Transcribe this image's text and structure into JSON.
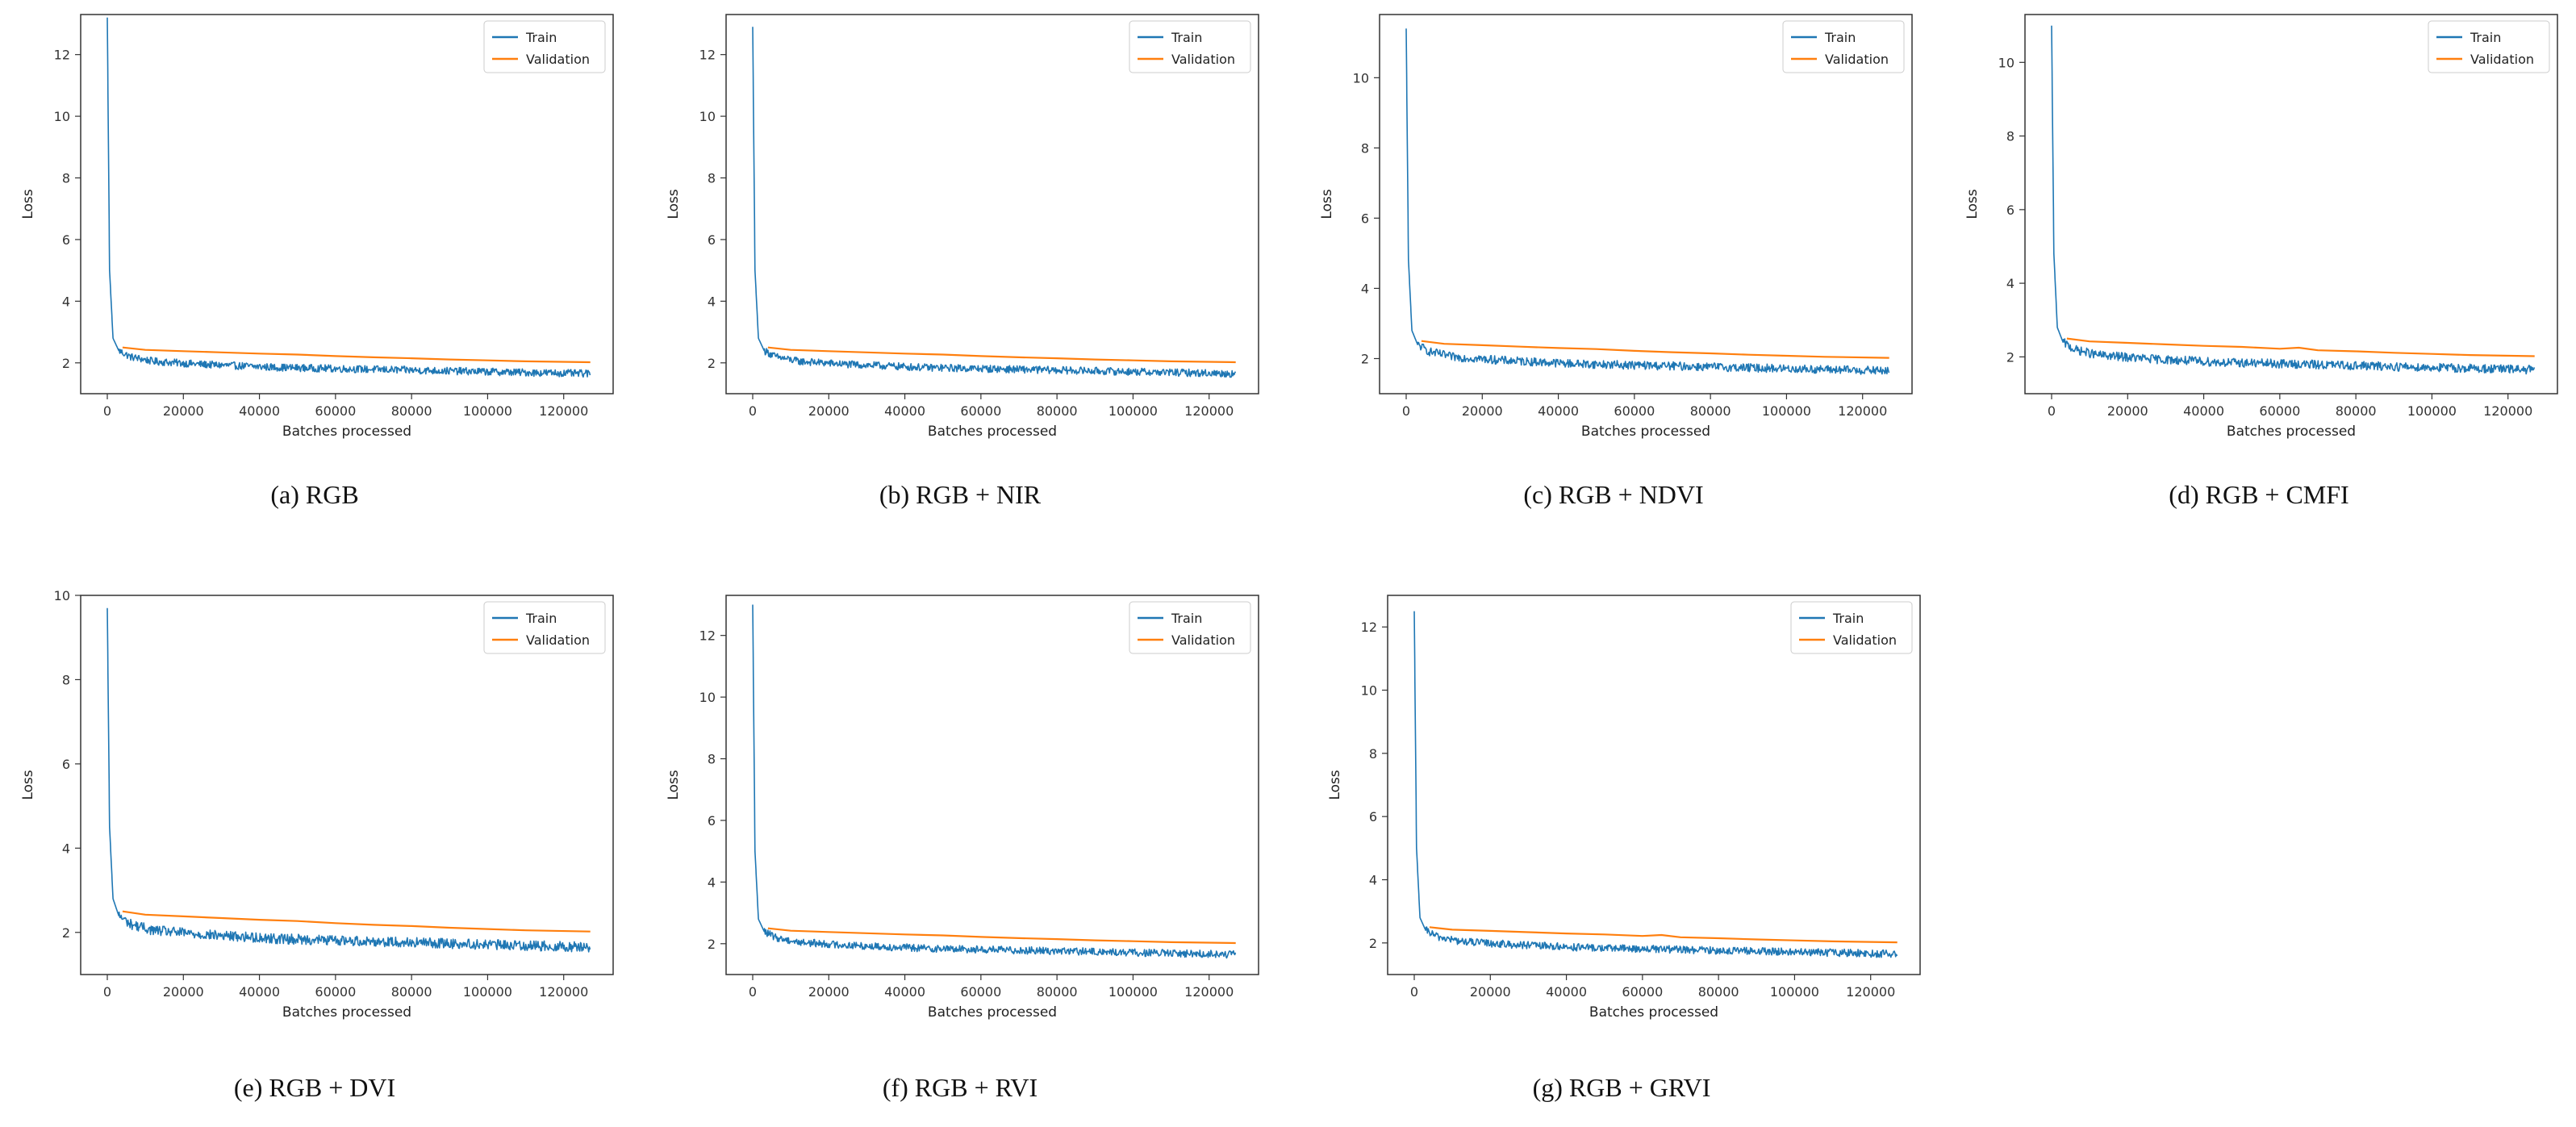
{
  "colors": {
    "train": "#1f77b4",
    "validation": "#ff7f0e",
    "axis": "#333333",
    "legend_border": "#cccccc"
  },
  "chart_data": [
    {
      "id": "a",
      "type": "line",
      "caption": "(a) RGB",
      "xlabel": "Batches processed",
      "ylabel": "Loss",
      "xlim": [
        -7000,
        133000
      ],
      "ylim": [
        1.0,
        13.3
      ],
      "xticks": [
        0,
        20000,
        40000,
        60000,
        80000,
        100000,
        120000
      ],
      "yticks": [
        2,
        4,
        6,
        8,
        10,
        12
      ],
      "legend": [
        "Train",
        "Validation"
      ],
      "legend_loc": "top-right",
      "series": [
        {
          "name": "Train",
          "x": [
            0,
            600,
            1500,
            3000,
            6000,
            12000,
            25000,
            45000,
            65000,
            85000,
            105000,
            127000
          ],
          "y": [
            13.2,
            5.0,
            2.8,
            2.4,
            2.2,
            2.05,
            1.95,
            1.85,
            1.8,
            1.75,
            1.7,
            1.65
          ],
          "noise": 0.12
        },
        {
          "name": "Validation",
          "x": [
            4000,
            10000,
            20000,
            30000,
            40000,
            50000,
            60000,
            70000,
            80000,
            90000,
            100000,
            110000,
            127000
          ],
          "y": [
            2.5,
            2.42,
            2.38,
            2.34,
            2.3,
            2.27,
            2.22,
            2.18,
            2.15,
            2.11,
            2.08,
            2.05,
            2.02
          ]
        }
      ]
    },
    {
      "id": "b",
      "type": "line",
      "caption": "(b) RGB + NIR",
      "xlabel": "Batches processed",
      "ylabel": "Loss",
      "xlim": [
        -7000,
        133000
      ],
      "ylim": [
        1.0,
        13.3
      ],
      "xticks": [
        0,
        20000,
        40000,
        60000,
        80000,
        100000,
        120000
      ],
      "yticks": [
        2,
        4,
        6,
        8,
        10,
        12
      ],
      "legend": [
        "Train",
        "Validation"
      ],
      "legend_loc": "top-right",
      "series": [
        {
          "name": "Train",
          "x": [
            0,
            600,
            1500,
            3000,
            6000,
            12000,
            25000,
            45000,
            65000,
            85000,
            105000,
            127000
          ],
          "y": [
            12.9,
            5.0,
            2.8,
            2.4,
            2.2,
            2.05,
            1.95,
            1.85,
            1.8,
            1.75,
            1.7,
            1.65
          ],
          "noise": 0.12
        },
        {
          "name": "Validation",
          "x": [
            4000,
            10000,
            20000,
            30000,
            40000,
            50000,
            60000,
            70000,
            80000,
            90000,
            100000,
            110000,
            127000
          ],
          "y": [
            2.5,
            2.42,
            2.38,
            2.34,
            2.3,
            2.27,
            2.22,
            2.18,
            2.15,
            2.11,
            2.08,
            2.05,
            2.02
          ]
        }
      ]
    },
    {
      "id": "c",
      "type": "line",
      "caption": "(c) RGB + NDVI",
      "xlabel": "Batches processed",
      "ylabel": "Loss",
      "xlim": [
        -7000,
        133000
      ],
      "ylim": [
        1.0,
        11.8
      ],
      "xticks": [
        0,
        20000,
        40000,
        60000,
        80000,
        100000,
        120000
      ],
      "yticks": [
        2,
        4,
        6,
        8,
        10
      ],
      "legend": [
        "Train",
        "Validation"
      ],
      "legend_loc": "top-right",
      "series": [
        {
          "name": "Train",
          "x": [
            0,
            600,
            1500,
            3000,
            6000,
            12000,
            25000,
            45000,
            65000,
            85000,
            105000,
            127000
          ],
          "y": [
            11.4,
            4.8,
            2.8,
            2.4,
            2.2,
            2.05,
            1.95,
            1.85,
            1.8,
            1.75,
            1.7,
            1.65
          ],
          "noise": 0.12
        },
        {
          "name": "Validation",
          "x": [
            4000,
            10000,
            20000,
            30000,
            40000,
            50000,
            60000,
            70000,
            80000,
            90000,
            100000,
            110000,
            127000
          ],
          "y": [
            2.5,
            2.42,
            2.38,
            2.34,
            2.3,
            2.27,
            2.22,
            2.18,
            2.15,
            2.11,
            2.08,
            2.05,
            2.02
          ]
        }
      ]
    },
    {
      "id": "d",
      "type": "line",
      "caption": "(d) RGB + CMFI",
      "xlabel": "Batches processed",
      "ylabel": "Loss",
      "xlim": [
        -7000,
        133000
      ],
      "ylim": [
        1.0,
        11.3
      ],
      "xticks": [
        0,
        20000,
        40000,
        60000,
        80000,
        100000,
        120000
      ],
      "yticks": [
        2,
        4,
        6,
        8,
        10
      ],
      "legend": [
        "Train",
        "Validation"
      ],
      "legend_loc": "top-right",
      "series": [
        {
          "name": "Train",
          "x": [
            0,
            600,
            1500,
            3000,
            6000,
            12000,
            25000,
            45000,
            65000,
            85000,
            105000,
            127000
          ],
          "y": [
            11.0,
            4.8,
            2.8,
            2.4,
            2.2,
            2.05,
            1.95,
            1.85,
            1.8,
            1.75,
            1.7,
            1.65
          ],
          "noise": 0.12
        },
        {
          "name": "Validation",
          "x": [
            4000,
            10000,
            20000,
            30000,
            40000,
            50000,
            60000,
            65000,
            70000,
            80000,
            90000,
            100000,
            110000,
            127000
          ],
          "y": [
            2.5,
            2.42,
            2.38,
            2.34,
            2.3,
            2.27,
            2.22,
            2.25,
            2.18,
            2.15,
            2.11,
            2.08,
            2.05,
            2.02
          ]
        }
      ]
    },
    {
      "id": "e",
      "type": "line",
      "caption": "(e) RGB + DVI",
      "xlabel": "Batches processed",
      "ylabel": "Loss",
      "xlim": [
        -7000,
        133000
      ],
      "ylim": [
        1.0,
        10.0
      ],
      "xticks": [
        0,
        20000,
        40000,
        60000,
        80000,
        100000,
        120000
      ],
      "yticks": [
        2,
        4,
        6,
        8,
        10
      ],
      "legend": [
        "Train",
        "Validation"
      ],
      "legend_loc": "top-right",
      "series": [
        {
          "name": "Train",
          "x": [
            0,
            600,
            1500,
            3000,
            6000,
            12000,
            25000,
            45000,
            65000,
            85000,
            105000,
            127000
          ],
          "y": [
            9.7,
            4.5,
            2.8,
            2.4,
            2.2,
            2.05,
            1.95,
            1.85,
            1.8,
            1.75,
            1.7,
            1.65
          ],
          "noise": 0.12
        },
        {
          "name": "Validation",
          "x": [
            4000,
            10000,
            20000,
            30000,
            40000,
            50000,
            60000,
            70000,
            80000,
            90000,
            100000,
            110000,
            127000
          ],
          "y": [
            2.5,
            2.42,
            2.38,
            2.34,
            2.3,
            2.27,
            2.22,
            2.18,
            2.15,
            2.11,
            2.08,
            2.05,
            2.02
          ]
        }
      ]
    },
    {
      "id": "f",
      "type": "line",
      "caption": "(f) RGB + RVI",
      "xlabel": "Batches processed",
      "ylabel": "Loss",
      "xlim": [
        -7000,
        133000
      ],
      "ylim": [
        1.0,
        13.3
      ],
      "xticks": [
        0,
        20000,
        40000,
        60000,
        80000,
        100000,
        120000
      ],
      "yticks": [
        2,
        4,
        6,
        8,
        10,
        12
      ],
      "legend": [
        "Train",
        "Validation"
      ],
      "legend_loc": "top-right",
      "series": [
        {
          "name": "Train",
          "x": [
            0,
            600,
            1500,
            3000,
            6000,
            12000,
            25000,
            45000,
            65000,
            85000,
            105000,
            127000
          ],
          "y": [
            13.0,
            5.0,
            2.8,
            2.4,
            2.2,
            2.05,
            1.95,
            1.85,
            1.8,
            1.75,
            1.7,
            1.65
          ],
          "noise": 0.12
        },
        {
          "name": "Validation",
          "x": [
            4000,
            10000,
            20000,
            30000,
            40000,
            50000,
            60000,
            70000,
            80000,
            90000,
            100000,
            110000,
            127000
          ],
          "y": [
            2.5,
            2.42,
            2.38,
            2.34,
            2.3,
            2.27,
            2.22,
            2.18,
            2.15,
            2.11,
            2.08,
            2.05,
            2.02
          ]
        }
      ]
    },
    {
      "id": "g",
      "type": "line",
      "caption": "(g) RGB + GRVI",
      "xlabel": "Batches processed",
      "ylabel": "Loss",
      "xlim": [
        -7000,
        133000
      ],
      "ylim": [
        1.0,
        13.0
      ],
      "xticks": [
        0,
        20000,
        40000,
        60000,
        80000,
        100000,
        120000
      ],
      "yticks": [
        2,
        4,
        6,
        8,
        10,
        12
      ],
      "legend": [
        "Train",
        "Validation"
      ],
      "legend_loc": "top-right",
      "series": [
        {
          "name": "Train",
          "x": [
            0,
            600,
            1500,
            3000,
            6000,
            12000,
            25000,
            45000,
            65000,
            85000,
            105000,
            127000
          ],
          "y": [
            12.5,
            5.0,
            2.8,
            2.4,
            2.2,
            2.05,
            1.95,
            1.85,
            1.8,
            1.75,
            1.7,
            1.65
          ],
          "noise": 0.12
        },
        {
          "name": "Validation",
          "x": [
            4000,
            10000,
            20000,
            30000,
            40000,
            50000,
            60000,
            65000,
            70000,
            80000,
            90000,
            100000,
            110000,
            127000
          ],
          "y": [
            2.5,
            2.42,
            2.38,
            2.34,
            2.3,
            2.27,
            2.22,
            2.25,
            2.18,
            2.15,
            2.11,
            2.08,
            2.05,
            2.02
          ]
        }
      ]
    }
  ]
}
